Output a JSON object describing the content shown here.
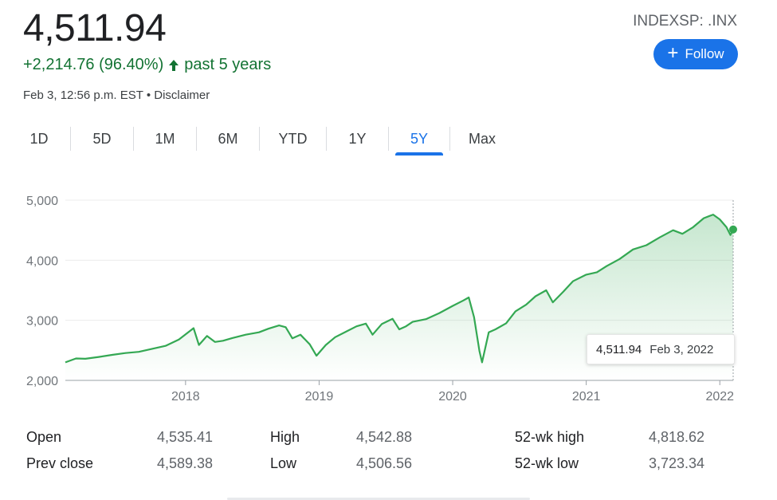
{
  "quote": {
    "price": "4,511.94",
    "change": "+2,214.76 (96.40%)",
    "change_period": "past 5 years",
    "timestamp": "Feb 3, 12:56 p.m. EST",
    "separator": "•",
    "disclaimer": "Disclaimer"
  },
  "ticker": "INDEXSP: .INX",
  "follow_label": "Follow",
  "tabs": [
    {
      "label": "1D"
    },
    {
      "label": "5D"
    },
    {
      "label": "1M"
    },
    {
      "label": "6M"
    },
    {
      "label": "YTD"
    },
    {
      "label": "1Y"
    },
    {
      "label": "5Y",
      "active": true
    },
    {
      "label": "Max"
    }
  ],
  "colors": {
    "line": "#34a853",
    "positive": "#137333",
    "accent": "#1a73e8"
  },
  "tooltip": {
    "value": "4,511.94",
    "date": "Feb 3, 2022"
  },
  "stats": {
    "open_label": "Open",
    "open": "4,535.41",
    "prev_close_label": "Prev close",
    "prev_close": "4,589.38",
    "high_label": "High",
    "high": "4,542.88",
    "low_label": "Low",
    "low": "4,506.56",
    "wk52_high_label": "52-wk high",
    "wk52_high": "4,818.62",
    "wk52_low_label": "52-wk low",
    "wk52_low": "3,723.34"
  },
  "chart_data": {
    "type": "area",
    "x_ticks": [
      "2018",
      "2019",
      "2020",
      "2021",
      "2022"
    ],
    "y_ticks": [
      "5,000",
      "4,000",
      "3,000",
      "2,000"
    ],
    "ylim": [
      2000,
      5000
    ],
    "x_domain": [
      2017.1,
      2022.1
    ],
    "grid": true,
    "series": [
      {
        "values": [
          [
            2017.1,
            2300
          ],
          [
            2017.18,
            2365
          ],
          [
            2017.25,
            2360
          ],
          [
            2017.35,
            2390
          ],
          [
            2017.45,
            2425
          ],
          [
            2017.55,
            2455
          ],
          [
            2017.65,
            2475
          ],
          [
            2017.75,
            2525
          ],
          [
            2017.85,
            2575
          ],
          [
            2017.95,
            2680
          ],
          [
            2018.06,
            2870
          ],
          [
            2018.1,
            2590
          ],
          [
            2018.16,
            2740
          ],
          [
            2018.22,
            2640
          ],
          [
            2018.28,
            2660
          ],
          [
            2018.35,
            2705
          ],
          [
            2018.45,
            2760
          ],
          [
            2018.55,
            2800
          ],
          [
            2018.62,
            2860
          ],
          [
            2018.7,
            2915
          ],
          [
            2018.75,
            2885
          ],
          [
            2018.8,
            2700
          ],
          [
            2018.86,
            2760
          ],
          [
            2018.93,
            2600
          ],
          [
            2018.98,
            2410
          ],
          [
            2019.05,
            2590
          ],
          [
            2019.12,
            2720
          ],
          [
            2019.2,
            2810
          ],
          [
            2019.28,
            2900
          ],
          [
            2019.35,
            2945
          ],
          [
            2019.4,
            2760
          ],
          [
            2019.47,
            2940
          ],
          [
            2019.55,
            3025
          ],
          [
            2019.6,
            2850
          ],
          [
            2019.65,
            2900
          ],
          [
            2019.7,
            2975
          ],
          [
            2019.8,
            3020
          ],
          [
            2019.9,
            3120
          ],
          [
            2020.0,
            3240
          ],
          [
            2020.08,
            3330
          ],
          [
            2020.12,
            3380
          ],
          [
            2020.16,
            3050
          ],
          [
            2020.2,
            2490
          ],
          [
            2020.22,
            2300
          ],
          [
            2020.27,
            2800
          ],
          [
            2020.32,
            2850
          ],
          [
            2020.4,
            2950
          ],
          [
            2020.47,
            3150
          ],
          [
            2020.55,
            3260
          ],
          [
            2020.62,
            3400
          ],
          [
            2020.7,
            3500
          ],
          [
            2020.75,
            3300
          ],
          [
            2020.83,
            3480
          ],
          [
            2020.9,
            3650
          ],
          [
            2021.0,
            3760
          ],
          [
            2021.08,
            3800
          ],
          [
            2021.15,
            3900
          ],
          [
            2021.25,
            4020
          ],
          [
            2021.35,
            4180
          ],
          [
            2021.45,
            4250
          ],
          [
            2021.55,
            4380
          ],
          [
            2021.65,
            4500
          ],
          [
            2021.72,
            4440
          ],
          [
            2021.8,
            4550
          ],
          [
            2021.88,
            4700
          ],
          [
            2021.95,
            4760
          ],
          [
            2022.0,
            4680
          ],
          [
            2022.05,
            4550
          ],
          [
            2022.08,
            4420
          ],
          [
            2022.1,
            4512
          ]
        ]
      }
    ]
  }
}
